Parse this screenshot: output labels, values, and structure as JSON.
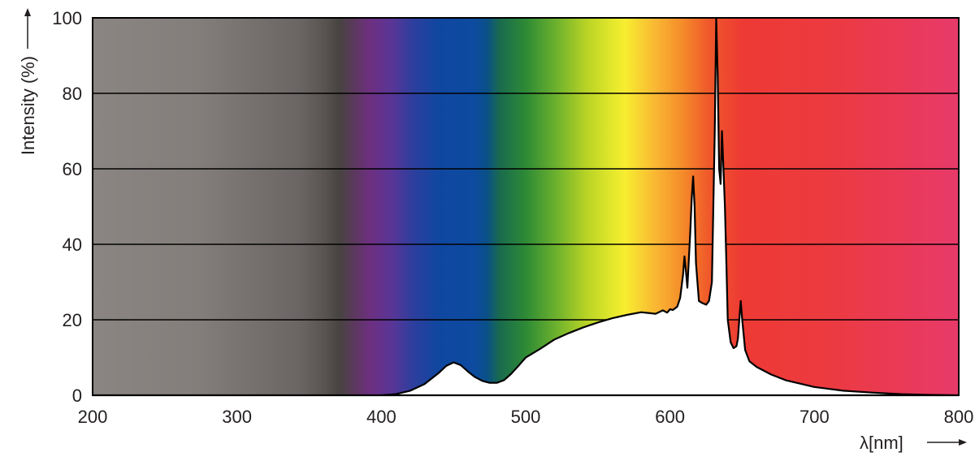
{
  "chart_data": {
    "type": "area",
    "title": "",
    "xlabel": "λ[nm]",
    "ylabel": "Intensity (%)",
    "xlim": [
      200,
      800
    ],
    "ylim": [
      0,
      100
    ],
    "x_ticks": [
      "200",
      "300",
      "400",
      "500",
      "600",
      "700",
      "800"
    ],
    "y_ticks": [
      "0",
      "20",
      "40",
      "60",
      "80",
      "100"
    ],
    "grid": "horizontal",
    "legend": "none",
    "background": "visible spectrum color gradient by wavelength",
    "colors": {
      "curve_fill": "#ffffff",
      "curve_stroke": "#000000",
      "grid": "#000000"
    },
    "series": [
      {
        "x": [
          200,
          400,
          410,
          420,
          430,
          440,
          445,
          450,
          455,
          460,
          465,
          470,
          475,
          480,
          485,
          490,
          495,
          500,
          510,
          520,
          530,
          540,
          550,
          560,
          570,
          580,
          585,
          590,
          595,
          598,
          600,
          602,
          605,
          607,
          609,
          610,
          611,
          612,
          614,
          615,
          616,
          617,
          618,
          620,
          622,
          625,
          627,
          629,
          631,
          632,
          633,
          634,
          635,
          636,
          637,
          638,
          639,
          640,
          642,
          644,
          646,
          647,
          648,
          649,
          650,
          652,
          655,
          660,
          670,
          680,
          700,
          720,
          740,
          760,
          780,
          800
        ],
        "y": [
          0,
          0,
          0.3,
          1.2,
          3,
          6,
          7.8,
          8.7,
          8,
          6.3,
          4.8,
          3.8,
          3.3,
          3.3,
          4,
          5.7,
          7.8,
          10,
          12.3,
          14.8,
          16.5,
          18,
          19.3,
          20.4,
          21.3,
          22,
          21.8,
          21.6,
          22.5,
          21.9,
          22.8,
          22.6,
          23.5,
          25.8,
          32,
          36.8,
          33,
          28.5,
          43,
          52,
          58,
          50,
          35,
          25,
          24.5,
          24,
          25,
          30,
          70,
          100,
          85,
          60,
          56,
          70,
          60,
          50,
          35,
          20,
          14,
          12.5,
          13,
          15,
          20,
          25,
          20,
          12,
          9,
          7.5,
          5.5,
          4,
          2.2,
          1.2,
          0.7,
          0.3,
          0.1,
          0
        ]
      }
    ]
  }
}
